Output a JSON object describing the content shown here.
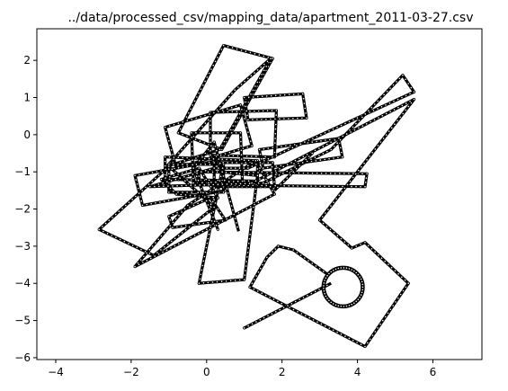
{
  "chart_data": {
    "type": "scatter",
    "title": "../data/processed_csv/mapping_data/apartment_2011-03-27.csv",
    "xlabel": "",
    "ylabel": "",
    "xlim": [
      -4.5,
      7.3
    ],
    "ylim": [
      -6.05,
      2.85
    ],
    "xticks": [
      -4,
      -2,
      0,
      2,
      4,
      6
    ],
    "yticks": [
      -6,
      -5,
      -4,
      -3,
      -2,
      -1,
      0,
      1,
      2
    ],
    "xtick_labels": [
      "−4",
      "−2",
      "0",
      "2",
      "4",
      "6"
    ],
    "ytick_labels": [
      "−6",
      "−5",
      "−4",
      "−3",
      "−2",
      "−1",
      "0",
      "1",
      "2"
    ],
    "grid": false,
    "marker_color": "#000000",
    "marker_face": "#ffffff",
    "paths": [
      [
        [
          0.45,
          2.4
        ],
        [
          1.75,
          2.05
        ],
        [
          0.4,
          -0.4
        ],
        [
          -0.75,
          0.05
        ],
        [
          0.45,
          2.4
        ]
      ],
      [
        [
          1.7,
          2.05
        ],
        [
          0.35,
          -0.4
        ],
        [
          -1.05,
          -0.85
        ],
        [
          0.75,
          1.2
        ],
        [
          1.7,
          2.05
        ]
      ],
      [
        [
          0.1,
          0.6
        ],
        [
          1.85,
          0.65
        ],
        [
          1.8,
          -0.6
        ],
        [
          0.1,
          -0.55
        ],
        [
          0.1,
          0.6
        ]
      ],
      [
        [
          1.0,
          1.0
        ],
        [
          2.55,
          1.1
        ],
        [
          2.65,
          0.45
        ],
        [
          1.1,
          0.4
        ],
        [
          1.0,
          1.0
        ]
      ],
      [
        [
          -1.1,
          0.2
        ],
        [
          0.9,
          0.8
        ],
        [
          1.2,
          -0.3
        ],
        [
          -0.8,
          -0.9
        ],
        [
          -1.1,
          0.2
        ]
      ],
      [
        [
          -1.9,
          -1.1
        ],
        [
          0.3,
          -0.7
        ],
        [
          0.5,
          -1.5
        ],
        [
          -1.7,
          -1.9
        ],
        [
          -1.9,
          -1.1
        ]
      ],
      [
        [
          -1.0,
          -0.8
        ],
        [
          0.45,
          -0.8
        ],
        [
          0.45,
          -1.55
        ],
        [
          -1.0,
          -1.55
        ],
        [
          -1.0,
          -0.8
        ]
      ],
      [
        [
          -1.1,
          -0.6
        ],
        [
          1.35,
          -0.7
        ],
        [
          1.35,
          -1.25
        ],
        [
          -1.1,
          -1.2
        ],
        [
          -1.1,
          -0.6
        ]
      ],
      [
        [
          0.2,
          -0.75
        ],
        [
          1.75,
          -0.75
        ],
        [
          1.8,
          -1.4
        ],
        [
          0.2,
          -1.4
        ],
        [
          0.2,
          -0.75
        ]
      ],
      [
        [
          -0.4,
          0.05
        ],
        [
          0.9,
          0.05
        ],
        [
          0.95,
          -1.25
        ],
        [
          -0.35,
          -1.3
        ],
        [
          -0.4,
          0.05
        ]
      ],
      [
        [
          1.4,
          -0.4
        ],
        [
          3.5,
          -0.1
        ],
        [
          3.6,
          -0.6
        ],
        [
          1.5,
          -0.9
        ],
        [
          1.4,
          -0.4
        ]
      ],
      [
        [
          -0.2,
          -1.0
        ],
        [
          4.25,
          -1.05
        ],
        [
          4.2,
          -1.4
        ],
        [
          -0.2,
          -1.35
        ],
        [
          -0.2,
          -1.0
        ]
      ],
      [
        [
          -1.0,
          -2.2
        ],
        [
          0.1,
          -1.7
        ],
        [
          0.5,
          -2.3
        ],
        [
          -0.9,
          -2.5
        ],
        [
          -1.0,
          -2.2
        ]
      ],
      [
        [
          0.4,
          -1.0
        ],
        [
          1.35,
          -1.1
        ],
        [
          1.0,
          -3.9
        ],
        [
          -0.2,
          -4.0
        ],
        [
          0.4,
          -1.0
        ]
      ],
      [
        [
          -2.85,
          -2.55
        ],
        [
          -1.0,
          -0.85
        ],
        [
          0.2,
          -1.95
        ],
        [
          -1.4,
          -3.25
        ],
        [
          -2.85,
          -2.55
        ]
      ],
      [
        [
          -1.2,
          -1.2
        ],
        [
          -0.2,
          -0.9
        ],
        [
          0.3,
          -1.7
        ],
        [
          -0.8,
          -1.6
        ],
        [
          -1.2,
          -1.2
        ]
      ],
      [
        [
          -1.9,
          -3.55
        ],
        [
          -0.5,
          -1.9
        ],
        [
          1.3,
          -0.7
        ],
        [
          1.8,
          -1.6
        ],
        [
          -1.9,
          -3.55
        ]
      ],
      [
        [
          0.3,
          -2.55
        ],
        [
          -0.35,
          -0.9
        ],
        [
          0.2,
          -0.2
        ],
        [
          0.85,
          -2.6
        ]
      ],
      [
        [
          -1.5,
          -1.4
        ],
        [
          0.2,
          -0.9
        ],
        [
          1.1,
          -0.9
        ],
        [
          5.5,
          1.15
        ],
        [
          5.2,
          1.6
        ],
        [
          3.3,
          -0.4
        ],
        [
          1.5,
          -1.3
        ],
        [
          -1.5,
          -1.4
        ]
      ],
      [
        [
          1.2,
          -1.3
        ],
        [
          5.5,
          0.95
        ],
        [
          3.0,
          -2.3
        ],
        [
          3.85,
          -3.05
        ],
        [
          4.2,
          -2.9
        ],
        [
          5.35,
          -4.0
        ],
        [
          4.2,
          -5.7
        ],
        [
          1.15,
          -4.1
        ],
        [
          1.6,
          -3.3
        ],
        [
          1.9,
          -3.0
        ],
        [
          2.3,
          -3.1
        ],
        [
          3.2,
          -3.75
        ]
      ],
      [
        [
          1.0,
          -5.2
        ],
        [
          3.3,
          -4.0
        ]
      ],
      [
        [
          2.8,
          -0.5
        ],
        [
          1.8,
          -1.5
        ]
      ]
    ],
    "circles": [
      {
        "cx": 3.62,
        "cy": -4.1,
        "r": 0.52
      }
    ]
  }
}
